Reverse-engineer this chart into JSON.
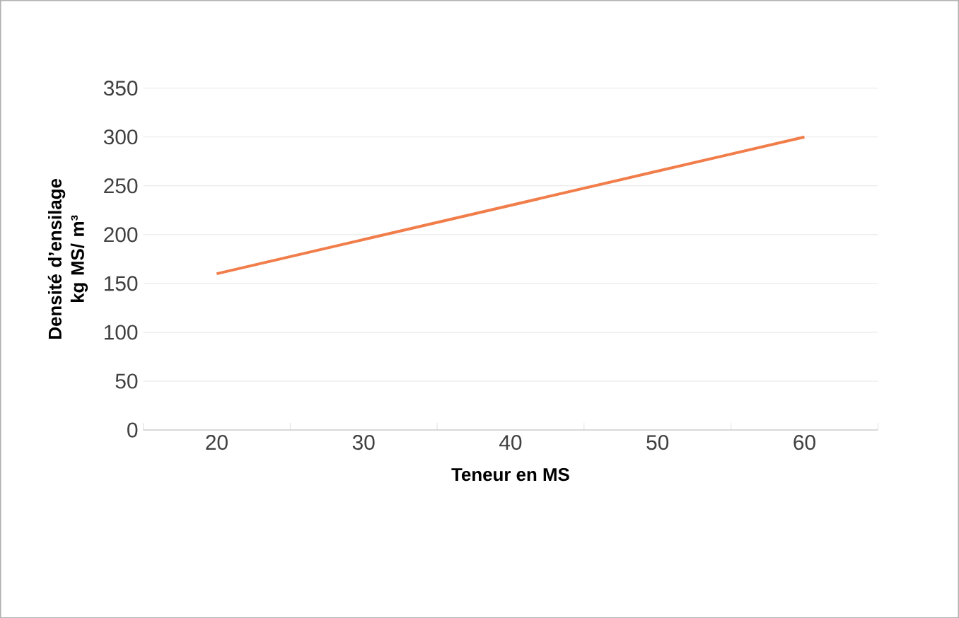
{
  "chart_data": {
    "type": "line",
    "categories": [
      "20",
      "30",
      "40",
      "50",
      "60"
    ],
    "values": [
      160,
      195,
      230,
      265,
      300
    ],
    "color": "#f07d4a",
    "xlabel": "Teneur en MS",
    "ylabel": "Densité d’ensilage kg MS/ m³",
    "ylim": [
      0,
      350
    ],
    "yticks": [
      0,
      50,
      100,
      150,
      200,
      250,
      300,
      350
    ],
    "grid": "y",
    "marker": "none",
    "line_style": "solid"
  }
}
